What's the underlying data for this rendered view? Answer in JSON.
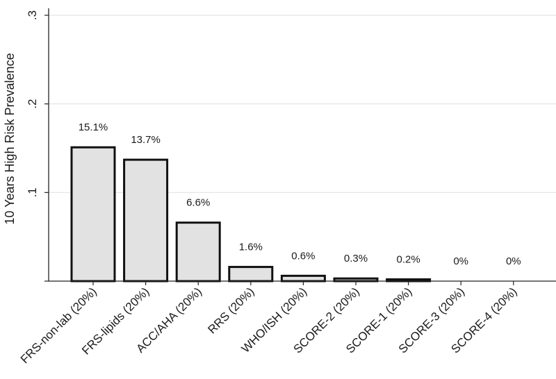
{
  "chart_data": {
    "type": "bar",
    "categories": [
      "FRS-non-lab (20%)",
      "FRS-lipids (20%)",
      "ACC/AHA (20%)",
      "RRS (20%)",
      "WHO/ISH (20%)",
      "SCORE-2 (20%)",
      "SCORE-1 (20%)",
      "SCORE-3 (20%)",
      "SCORE-4 (20%)"
    ],
    "values": [
      0.151,
      0.137,
      0.066,
      0.016,
      0.006,
      0.003,
      0.002,
      0,
      0
    ],
    "data_labels": [
      "15.1%",
      "13.7%",
      "6.6%",
      "1.6%",
      "0.6%",
      "0.3%",
      "0.2%",
      "0%",
      "0%"
    ],
    "ylabel": "10 Years High Risk Prevalence",
    "ylim": [
      0,
      0.3
    ],
    "yticks": [
      0.1,
      0.2,
      0.3
    ],
    "ytick_labels": [
      ".1",
      ".2",
      ".3"
    ],
    "grid": true,
    "colors": {
      "bar_fill": "#e2e2e2",
      "bar_stroke": "#111111",
      "grid": "#e3e3e3",
      "axis": "#222222"
    }
  }
}
